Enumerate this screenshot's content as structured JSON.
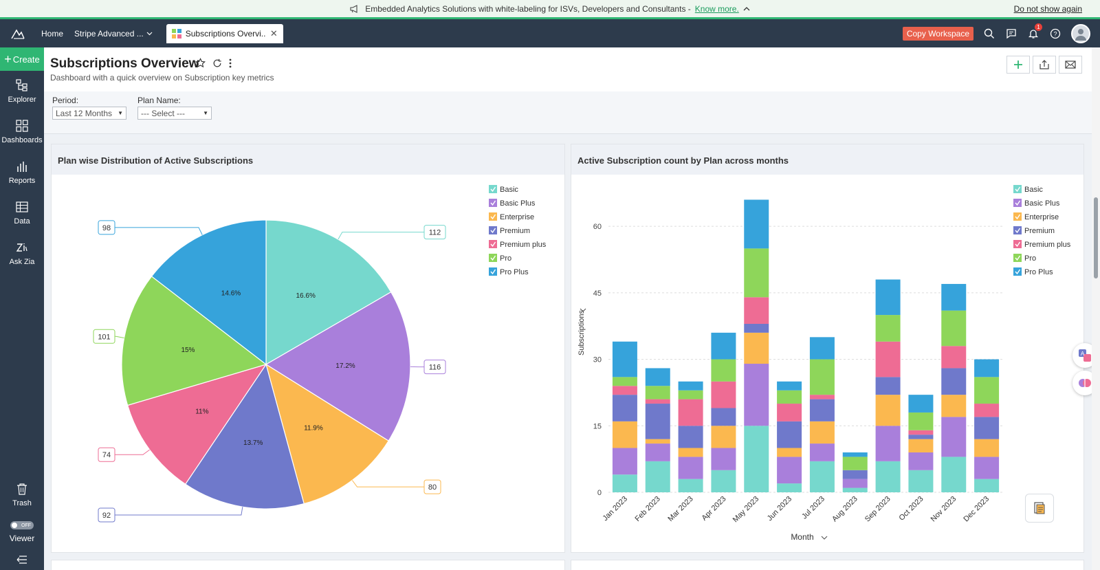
{
  "banner": {
    "message": "Embedded Analytics Solutions with white-labeling for ISVs, Developers and Consultants -",
    "link": "Know more.",
    "dismiss": "Do not show again"
  },
  "topbar": {
    "home": "Home",
    "workspace": "Stripe Advanced ...",
    "tab_label": "Subscriptions Overvi...",
    "copy_workspace": "Copy Workspace",
    "notification_count": "1"
  },
  "sidebar": {
    "create": "Create",
    "items": [
      {
        "label": "Explorer",
        "icon": "explorer-icon"
      },
      {
        "label": "Dashboards",
        "icon": "dashboards-icon"
      },
      {
        "label": "Reports",
        "icon": "reports-icon"
      },
      {
        "label": "Data",
        "icon": "data-icon"
      },
      {
        "label": "Ask Zia",
        "icon": "ask-zia-icon"
      }
    ],
    "trash": "Trash",
    "toggle": "OFF",
    "viewer": "Viewer"
  },
  "header": {
    "title": "Subscriptions Overview",
    "subtitle": "Dashboard with a quick overview on Subscription key metrics"
  },
  "filters": {
    "period_label": "Period:",
    "period_value": "Last 12 Months",
    "plan_label": "Plan Name:",
    "plan_value": "--- Select ---"
  },
  "colors": {
    "Basic": "#76d8cd",
    "Basic Plus": "#a97fdb",
    "Enterprise": "#fbb84f",
    "Premium": "#6f79cb",
    "Premium plus": "#ee6c94",
    "Pro": "#8ed65a",
    "Pro Plus": "#36a3db"
  },
  "chart_data": [
    {
      "type": "pie",
      "title": "Plan wise Distribution of Active Subscriptions",
      "legend_position": "top-right",
      "slices": [
        {
          "name": "Basic",
          "value": 112,
          "percent": "16.6%"
        },
        {
          "name": "Basic Plus",
          "value": 116,
          "percent": "17.2%"
        },
        {
          "name": "Enterprise",
          "value": 80,
          "percent": "11.9%"
        },
        {
          "name": "Premium",
          "value": 92,
          "percent": "13.7%"
        },
        {
          "name": "Premium plus",
          "value": 74,
          "percent": "11%"
        },
        {
          "name": "Pro",
          "value": 101,
          "percent": "15%"
        },
        {
          "name": "Pro Plus",
          "value": 98,
          "percent": "14.6%"
        }
      ]
    },
    {
      "type": "bar",
      "stacked": true,
      "title": "Active Subscription count by Plan across months",
      "xlabel": "Month",
      "ylabel": "Subscriptions",
      "ylim": [
        0,
        67
      ],
      "yticks": [
        0,
        15,
        30,
        45,
        60
      ],
      "grid": true,
      "legend_position": "top-right",
      "categories": [
        "Jan 2023",
        "Feb 2023",
        "Mar 2023",
        "Apr 2023",
        "May 2023",
        "Jun 2023",
        "Jul 2023",
        "Aug 2023",
        "Sep 2023",
        "Oct 2023",
        "Nov 2023",
        "Dec 2023"
      ],
      "series": [
        {
          "name": "Basic",
          "values": [
            4,
            7,
            3,
            5,
            15,
            2,
            7,
            1,
            7,
            5,
            8,
            3
          ]
        },
        {
          "name": "Basic Plus",
          "values": [
            6,
            4,
            5,
            5,
            14,
            6,
            4,
            2,
            8,
            4,
            9,
            5
          ]
        },
        {
          "name": "Enterprise",
          "values": [
            6,
            1,
            2,
            5,
            7,
            2,
            5,
            0,
            7,
            3,
            5,
            4
          ]
        },
        {
          "name": "Premium",
          "values": [
            6,
            8,
            5,
            4,
            2,
            6,
            5,
            2,
            4,
            1,
            6,
            5
          ]
        },
        {
          "name": "Premium plus",
          "values": [
            2,
            1,
            6,
            6,
            6,
            4,
            1,
            0,
            8,
            1,
            5,
            3
          ]
        },
        {
          "name": "Pro",
          "values": [
            2,
            3,
            2,
            5,
            11,
            3,
            8,
            3,
            6,
            4,
            8,
            6
          ]
        },
        {
          "name": "Pro Plus",
          "values": [
            8,
            4,
            2,
            6,
            11,
            2,
            5,
            1,
            8,
            4,
            6,
            4
          ]
        }
      ]
    }
  ]
}
